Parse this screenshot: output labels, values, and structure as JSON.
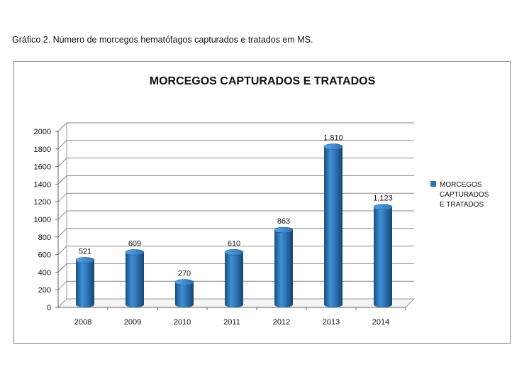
{
  "caption": "Gráfico 2. Número de morcegos hematófagos capturados e tratados em MS.",
  "chart_data": {
    "type": "bar",
    "title": "MORCEGOS CAPTURADOS E TRATADOS",
    "categories": [
      "2008",
      "2009",
      "2010",
      "2011",
      "2012",
      "2013",
      "2014"
    ],
    "series": [
      {
        "name": "MORCEGOS CAPTURADOS E TRATADOS",
        "values": [
          521,
          609,
          270,
          610,
          863,
          1810,
          1123
        ],
        "labels": [
          "521",
          "609",
          "270",
          "610",
          "863",
          "1.810",
          "1.123"
        ],
        "color": "#2e75b6"
      }
    ],
    "yticks": [
      "0",
      "200",
      "400",
      "600",
      "800",
      "1000",
      "1200",
      "1400",
      "1600",
      "1800",
      "2000"
    ],
    "ylim": [
      0,
      2000
    ],
    "grid": true,
    "legend_position": "right",
    "legend_lines": [
      "MORCEGOS",
      "CAPTURADOS",
      "E TRATADOS"
    ],
    "style": "3d-cylinder"
  }
}
